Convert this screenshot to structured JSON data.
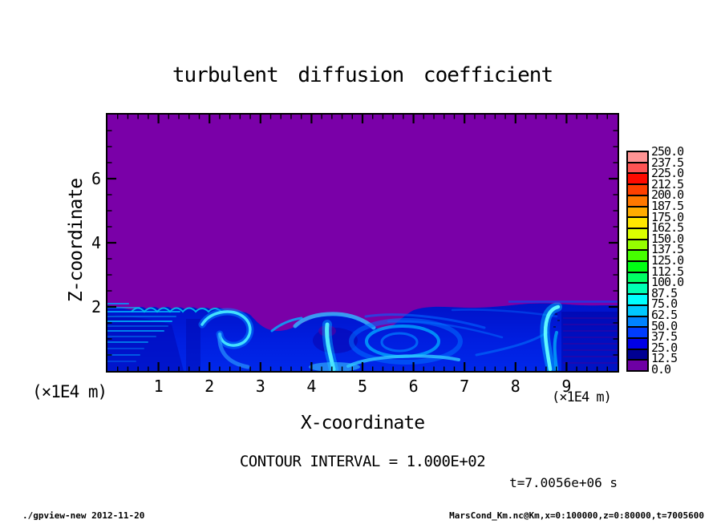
{
  "title": "turbulent diffusion coefficient",
  "axes": {
    "x_label": "X-coordinate",
    "y_label": "Z-coordinate",
    "x_unit_left": "(×1E4 m)",
    "x_unit_right": "(×1E4 m)",
    "x_tick_labels": [
      "1",
      "2",
      "3",
      "4",
      "5",
      "6",
      "7",
      "8",
      "9"
    ],
    "y_tick_labels": [
      "2",
      "4",
      "6"
    ]
  },
  "annotations": {
    "contour_interval": "CONTOUR INTERVAL = 1.000E+02",
    "time": "t=7.0056e+06 s"
  },
  "footer": {
    "left": "./gpview-new  2012-11-20",
    "right": "MarsCond_Km.nc@Km,x=0:100000,z=0:80000,t=7005600"
  },
  "colorbar": {
    "labels_top_down": [
      "250.0",
      "237.5",
      "225.0",
      "212.5",
      "200.0",
      "187.5",
      "175.0",
      "162.5",
      "150.0",
      "137.5",
      "125.0",
      "112.5",
      "100.0",
      "87.5",
      "75.0",
      "62.5",
      "50.0",
      "37.5",
      "25.0",
      "12.5",
      "0.0"
    ],
    "colors_top_down": [
      "#ff9494",
      "#ff5454",
      "#ff0a00",
      "#ff4000",
      "#ff7800",
      "#ffac00",
      "#ffe600",
      "#dcff00",
      "#96ff00",
      "#46ff00",
      "#00ff14",
      "#00ff64",
      "#00ffb4",
      "#00ffff",
      "#00c8ff",
      "#0082ff",
      "#003cff",
      "#0000e6",
      "#000092",
      "#6e00a4"
    ]
  },
  "chart_data": {
    "type": "heatmap",
    "title": "turbulent diffusion coefficient",
    "xlabel": "X-coordinate (×1E4 m)",
    "ylabel": "Z-coordinate (×1E4 m)",
    "xlim": [
      0,
      10
    ],
    "ylim": [
      0,
      8
    ],
    "x_major_ticks": [
      1,
      2,
      3,
      4,
      5,
      6,
      7,
      8,
      9
    ],
    "x_minor_step": 0.2,
    "y_major_ticks": [
      2,
      4,
      6
    ],
    "y_minor_step": 0.5,
    "contour_interval": 100.0,
    "time_seconds": 7005600,
    "colormap_levels": [
      0,
      12.5,
      25,
      37.5,
      50,
      62.5,
      75,
      87.5,
      100,
      112.5,
      125,
      137.5,
      150,
      162.5,
      175,
      187.5,
      200,
      212.5,
      225,
      237.5,
      250
    ],
    "colormap_colors_bottom_up": [
      "#6e00a4",
      "#000092",
      "#0000e6",
      "#003cff",
      "#0082ff",
      "#00c8ff",
      "#00ffff",
      "#00ffb4",
      "#00ff64",
      "#00ff14",
      "#46ff00",
      "#96ff00",
      "#dcff00",
      "#ffe600",
      "#ffac00",
      "#ff7800",
      "#ff4000",
      "#ff0a00",
      "#ff5454",
      "#ff9494"
    ],
    "field_summary": {
      "upper_region": {
        "z_range_1e4m": [
          2,
          8
        ],
        "value": 0.0,
        "color": "#7a00a8"
      },
      "mixed_layer": {
        "z_range_1e4m": [
          0,
          2
        ],
        "value_range": [
          12.5,
          100
        ],
        "description": "Turbulent boundary layer: mostly blue (25-62.5) with cyan maxima (75-100); Kelvin-Helmholtz billows near x=0.5-2.3 at z≈1.9, breaking-wave hook eddy near x=2, dome eddy near x=4.2 with quiescent core, rising plume near x=4.4, large vortex centered near x=5.8 z≈0.9, bright vertical plume at x≈8.6, darker striated region x>8.9"
      }
    }
  }
}
